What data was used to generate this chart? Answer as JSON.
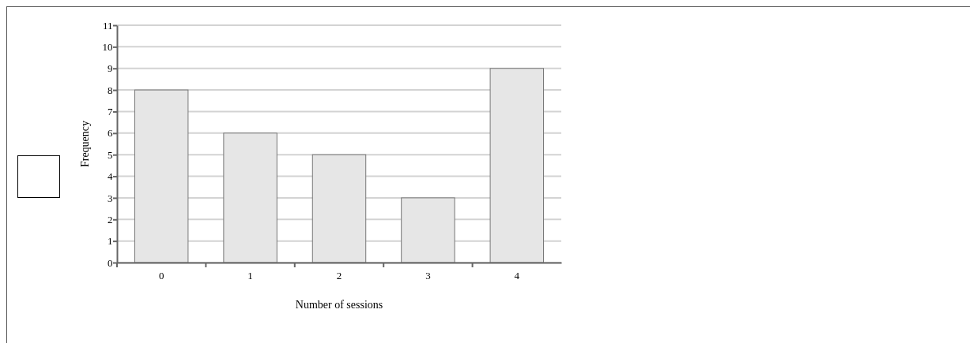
{
  "chart_data": {
    "type": "bar",
    "xlabel": "Number of sessions",
    "ylabel": "Frequency",
    "categories": [
      "0",
      "1",
      "2",
      "3",
      "4"
    ],
    "values": [
      8,
      6,
      5,
      3,
      9
    ],
    "color": "#e6e6e6",
    "ylim": [
      0,
      11
    ],
    "yticks": [
      0,
      1,
      2,
      3,
      4,
      5,
      6,
      7,
      8,
      9,
      10,
      11
    ],
    "grid": "y"
  }
}
